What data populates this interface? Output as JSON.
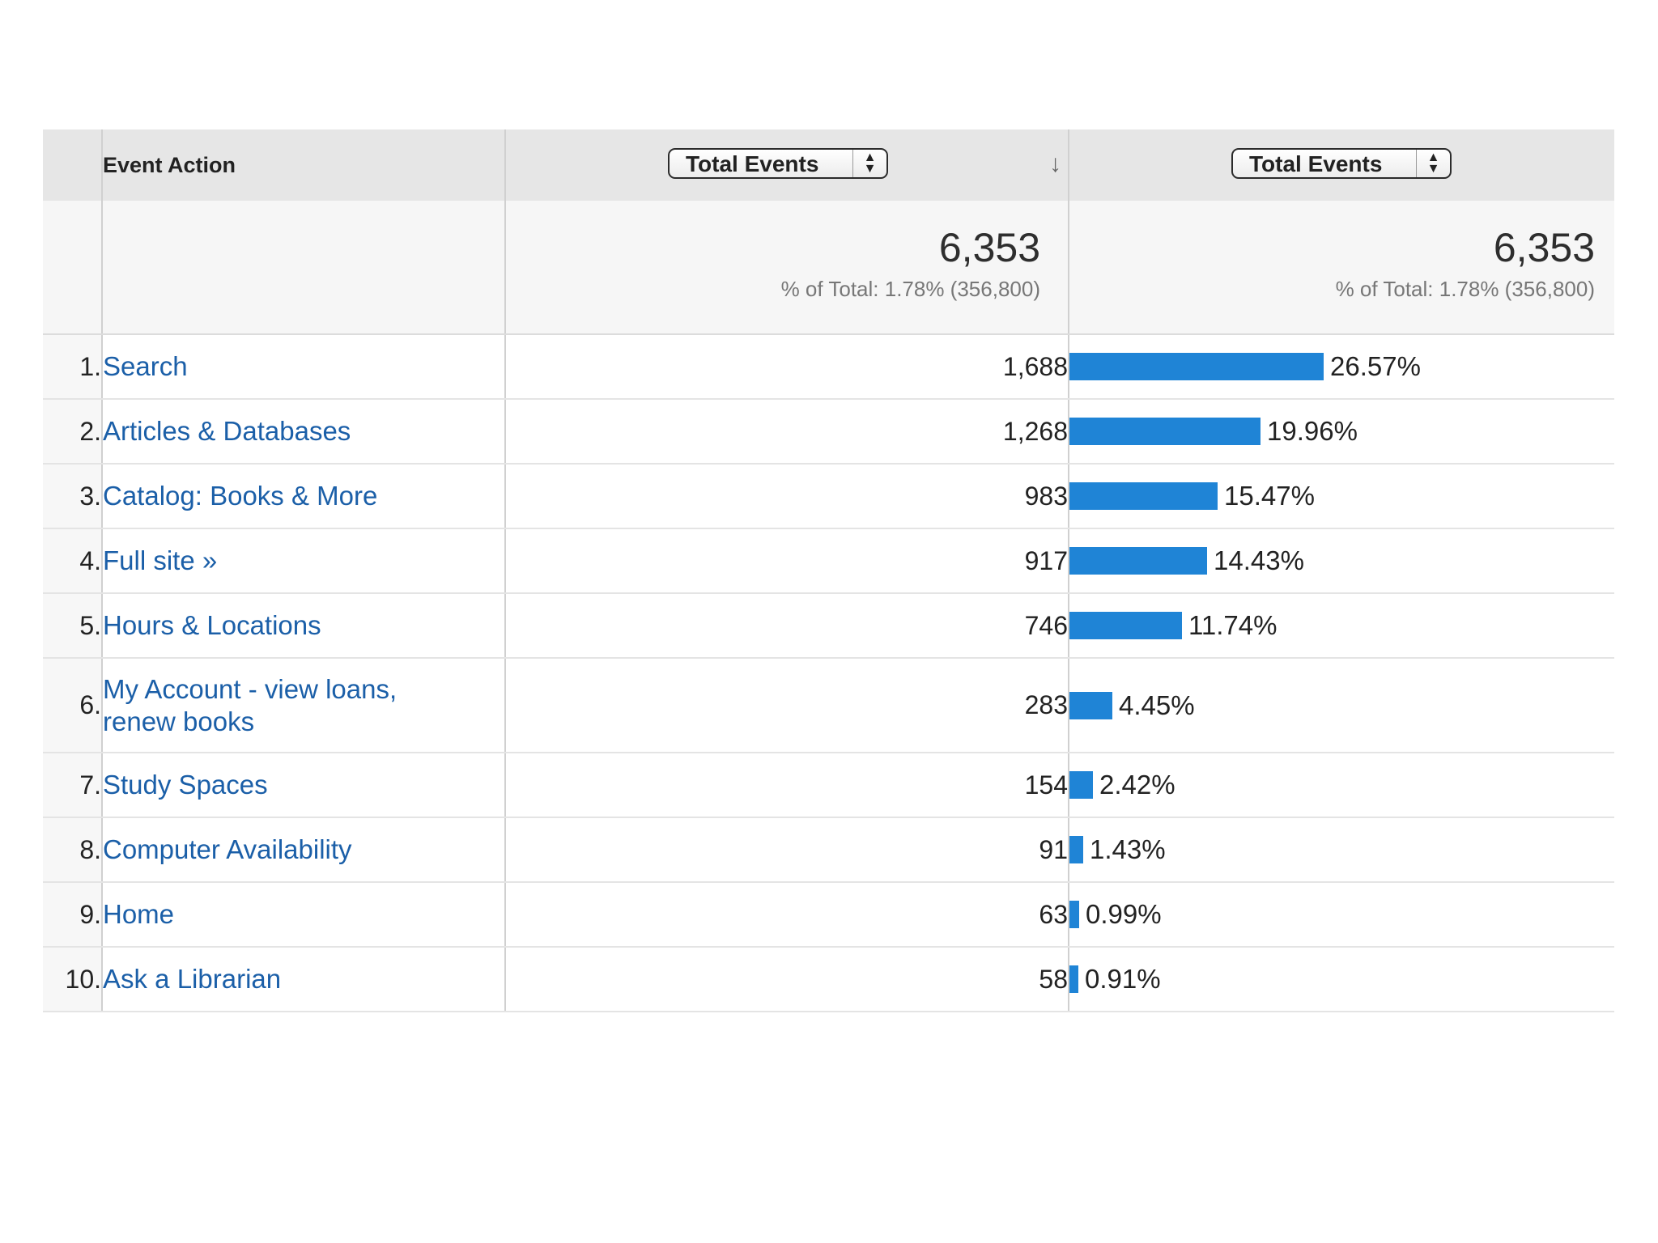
{
  "header": {
    "dimension_label": "Event Action",
    "metric_select_1": "Total Events",
    "metric_select_2": "Total Events",
    "sort_icon": "down-arrow-icon"
  },
  "totals": {
    "value_1": "6,353",
    "sub_1": "% of Total: 1.78% (356,800)",
    "value_2": "6,353",
    "sub_2": "% of Total: 1.78% (356,800)"
  },
  "rows": [
    {
      "index": "1.",
      "name": "Search",
      "value": "1,688",
      "pct": 26.57,
      "pct_label": "26.57%"
    },
    {
      "index": "2.",
      "name": "Articles & Databases",
      "value": "1,268",
      "pct": 19.96,
      "pct_label": "19.96%"
    },
    {
      "index": "3.",
      "name": "Catalog: Books & More",
      "value": "983",
      "pct": 15.47,
      "pct_label": "15.47%"
    },
    {
      "index": "4.",
      "name": "Full site »",
      "value": "917",
      "pct": 14.43,
      "pct_label": "14.43%"
    },
    {
      "index": "5.",
      "name": "Hours & Locations",
      "value": "746",
      "pct": 11.74,
      "pct_label": "11.74%"
    },
    {
      "index": "6.",
      "name": "My Account - view loans, renew books",
      "value": "283",
      "pct": 4.45,
      "pct_label": "4.45%"
    },
    {
      "index": "7.",
      "name": "Study Spaces",
      "value": "154",
      "pct": 2.42,
      "pct_label": "2.42%"
    },
    {
      "index": "8.",
      "name": "Computer Availability",
      "value": "91",
      "pct": 1.43,
      "pct_label": "1.43%"
    },
    {
      "index": "9.",
      "name": "Home",
      "value": "63",
      "pct": 0.99,
      "pct_label": "0.99%"
    },
    {
      "index": "10.",
      "name": "Ask a Librarian",
      "value": "58",
      "pct": 0.91,
      "pct_label": "0.91%"
    }
  ],
  "colors": {
    "bar": "#1f84d6",
    "link": "#1b5fa8",
    "header_bg": "#e6e6e6"
  }
}
